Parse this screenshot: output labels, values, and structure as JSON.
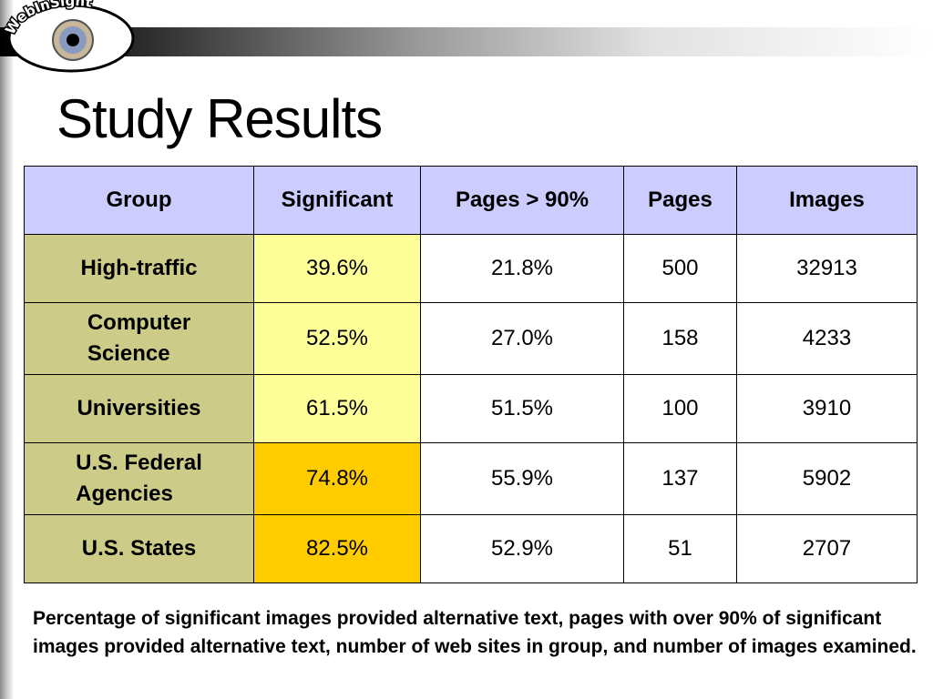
{
  "slide": {
    "logo_text": "WebInSight",
    "title": "Study Results"
  },
  "table": {
    "headers": [
      "Group",
      "Significant",
      "Pages > 90%",
      "Pages",
      "Images"
    ],
    "rows": [
      {
        "group_lines": [
          "High-traffic"
        ],
        "significant": "39.6%",
        "pages_over_90": "21.8%",
        "pages": "500",
        "images": "32913"
      },
      {
        "group_lines": [
          "Computer",
          "Science"
        ],
        "significant": "52.5%",
        "pages_over_90": "27.0%",
        "pages": "158",
        "images": "4233"
      },
      {
        "group_lines": [
          "Universities"
        ],
        "significant": "61.5%",
        "pages_over_90": "51.5%",
        "pages": "100",
        "images": "3910"
      },
      {
        "group_lines": [
          "U.S. Federal",
          "Agencies"
        ],
        "significant": "74.8%",
        "pages_over_90": "55.9%",
        "pages": "137",
        "images": "5902"
      },
      {
        "group_lines": [
          "U.S. States"
        ],
        "significant": "82.5%",
        "pages_over_90": "52.9%",
        "pages": "51",
        "images": "2707"
      }
    ]
  },
  "caption": "Percentage of significant images provided alternative text, pages with over 90% of significant images provided alternative text, number of web sites in group, and number of images examined.",
  "colors": {
    "header_bg": "#ccccff",
    "group_bg": "#cccc88",
    "significant_low_bg": "#ffff99",
    "significant_high_bg": "#ffcc00"
  }
}
